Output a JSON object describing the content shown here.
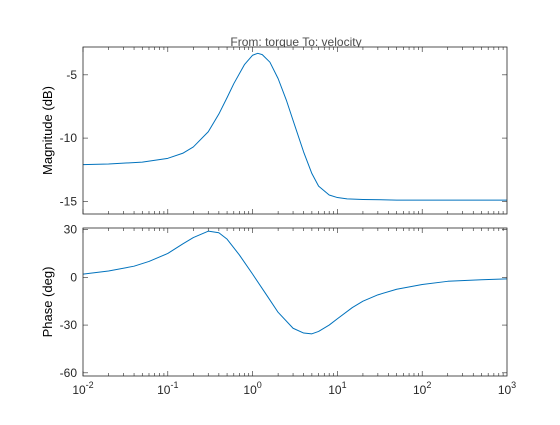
{
  "chart_data": {
    "type": "line",
    "title": "From: torque  To: velocity",
    "colors": {
      "line": "#0072bd",
      "axis": "#262626",
      "background": "#ffffff"
    },
    "x_scale": "log",
    "xlim": [
      0.01,
      1000
    ],
    "x_ticks": [
      {
        "value": 0.01,
        "base": "10",
        "exp": "-2"
      },
      {
        "value": 0.1,
        "base": "10",
        "exp": "-1"
      },
      {
        "value": 1,
        "base": "10",
        "exp": "0"
      },
      {
        "value": 10,
        "base": "10",
        "exp": "1"
      },
      {
        "value": 100,
        "base": "10",
        "exp": "2"
      },
      {
        "value": 1000,
        "base": "10",
        "exp": "3"
      }
    ],
    "panels": [
      {
        "name": "magnitude",
        "ylabel": "Magnitude (dB)",
        "ylim": [
          -16,
          -2.8
        ],
        "y_ticks": [
          {
            "value": -15,
            "label": "-15"
          },
          {
            "value": -10,
            "label": "-10"
          },
          {
            "value": -5,
            "label": "-5"
          }
        ],
        "series": [
          {
            "x": [
              0.01,
              0.02,
              0.05,
              0.1,
              0.15,
              0.2,
              0.3,
              0.4,
              0.5,
              0.6,
              0.8,
              1.0,
              1.15,
              1.3,
              1.6,
              2.0,
              2.5,
              3.0,
              4.0,
              5.0,
              6.0,
              8.0,
              10,
              13,
              20,
              50,
              100,
              300,
              1000
            ],
            "y": [
              -12.1,
              -12.05,
              -11.9,
              -11.6,
              -11.2,
              -10.7,
              -9.5,
              -8.1,
              -6.8,
              -5.7,
              -4.2,
              -3.45,
              -3.3,
              -3.4,
              -4.0,
              -5.3,
              -7.0,
              -8.6,
              -11.1,
              -12.8,
              -13.8,
              -14.5,
              -14.7,
              -14.8,
              -14.85,
              -14.9,
              -14.9,
              -14.9,
              -14.9
            ]
          }
        ]
      },
      {
        "name": "phase",
        "ylabel": "Phase (deg)",
        "ylim": [
          -62,
          31
        ],
        "y_ticks": [
          {
            "value": -60,
            "label": "-60"
          },
          {
            "value": -30,
            "label": "-30"
          },
          {
            "value": 0,
            "label": "0"
          },
          {
            "value": 30,
            "label": "30"
          }
        ],
        "series": [
          {
            "x": [
              0.01,
              0.02,
              0.04,
              0.06,
              0.1,
              0.15,
              0.2,
              0.3,
              0.4,
              0.5,
              0.7,
              1.0,
              1.5,
              2.0,
              3.0,
              4.0,
              5.0,
              6.0,
              8.0,
              10,
              15,
              20,
              30,
              50,
              100,
              200,
              500,
              1000
            ],
            "y": [
              2,
              4,
              7,
              10,
              15,
              21,
              25,
              29,
              28,
              24,
              14,
              2,
              -12,
              -22,
              -32,
              -35,
              -35.5,
              -34,
              -30,
              -26,
              -19,
              -15,
              -11,
              -7.5,
              -4.5,
              -2.5,
              -1.5,
              -1
            ]
          }
        ]
      }
    ]
  }
}
